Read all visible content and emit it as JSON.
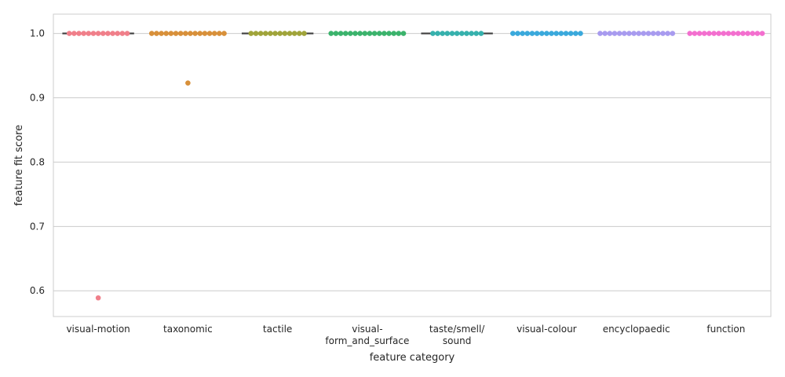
{
  "chart_data": {
    "type": "scatter",
    "subtype": "swarm-with-box",
    "xlabel": "feature category",
    "ylabel": "feature fit score",
    "ylim": [
      0.56,
      1.03
    ],
    "yticks": [
      "0.6",
      "0.7",
      "0.8",
      "0.9",
      "1.0"
    ],
    "grid": "horizontal",
    "categories": [
      {
        "label_lines": [
          "visual-motion"
        ],
        "color": "#f07f8a",
        "points_at_1": 13,
        "outliers": [
          0.589
        ]
      },
      {
        "label_lines": [
          "taxonomic"
        ],
        "color": "#d8903a",
        "points_at_1": 16,
        "outliers": [
          0.923
        ]
      },
      {
        "label_lines": [
          "tactile"
        ],
        "color": "#a0a43a",
        "points_at_1": 12,
        "outliers": []
      },
      {
        "label_lines": [
          "visual-",
          "form_and_surface"
        ],
        "color": "#3bb36c",
        "points_at_1": 16,
        "outliers": []
      },
      {
        "label_lines": [
          "taste/smell/",
          "sound"
        ],
        "color": "#36b1ad",
        "points_at_1": 11,
        "outliers": []
      },
      {
        "label_lines": [
          "visual-colour"
        ],
        "color": "#3aa9dc",
        "points_at_1": 15,
        "outliers": []
      },
      {
        "label_lines": [
          "encyclopaedic"
        ],
        "color": "#a89bef",
        "points_at_1": 16,
        "outliers": []
      },
      {
        "label_lines": [
          "function"
        ],
        "color": "#f36fcf",
        "points_at_1": 16,
        "outliers": []
      }
    ],
    "median_line_color": "#3f3f3f"
  }
}
